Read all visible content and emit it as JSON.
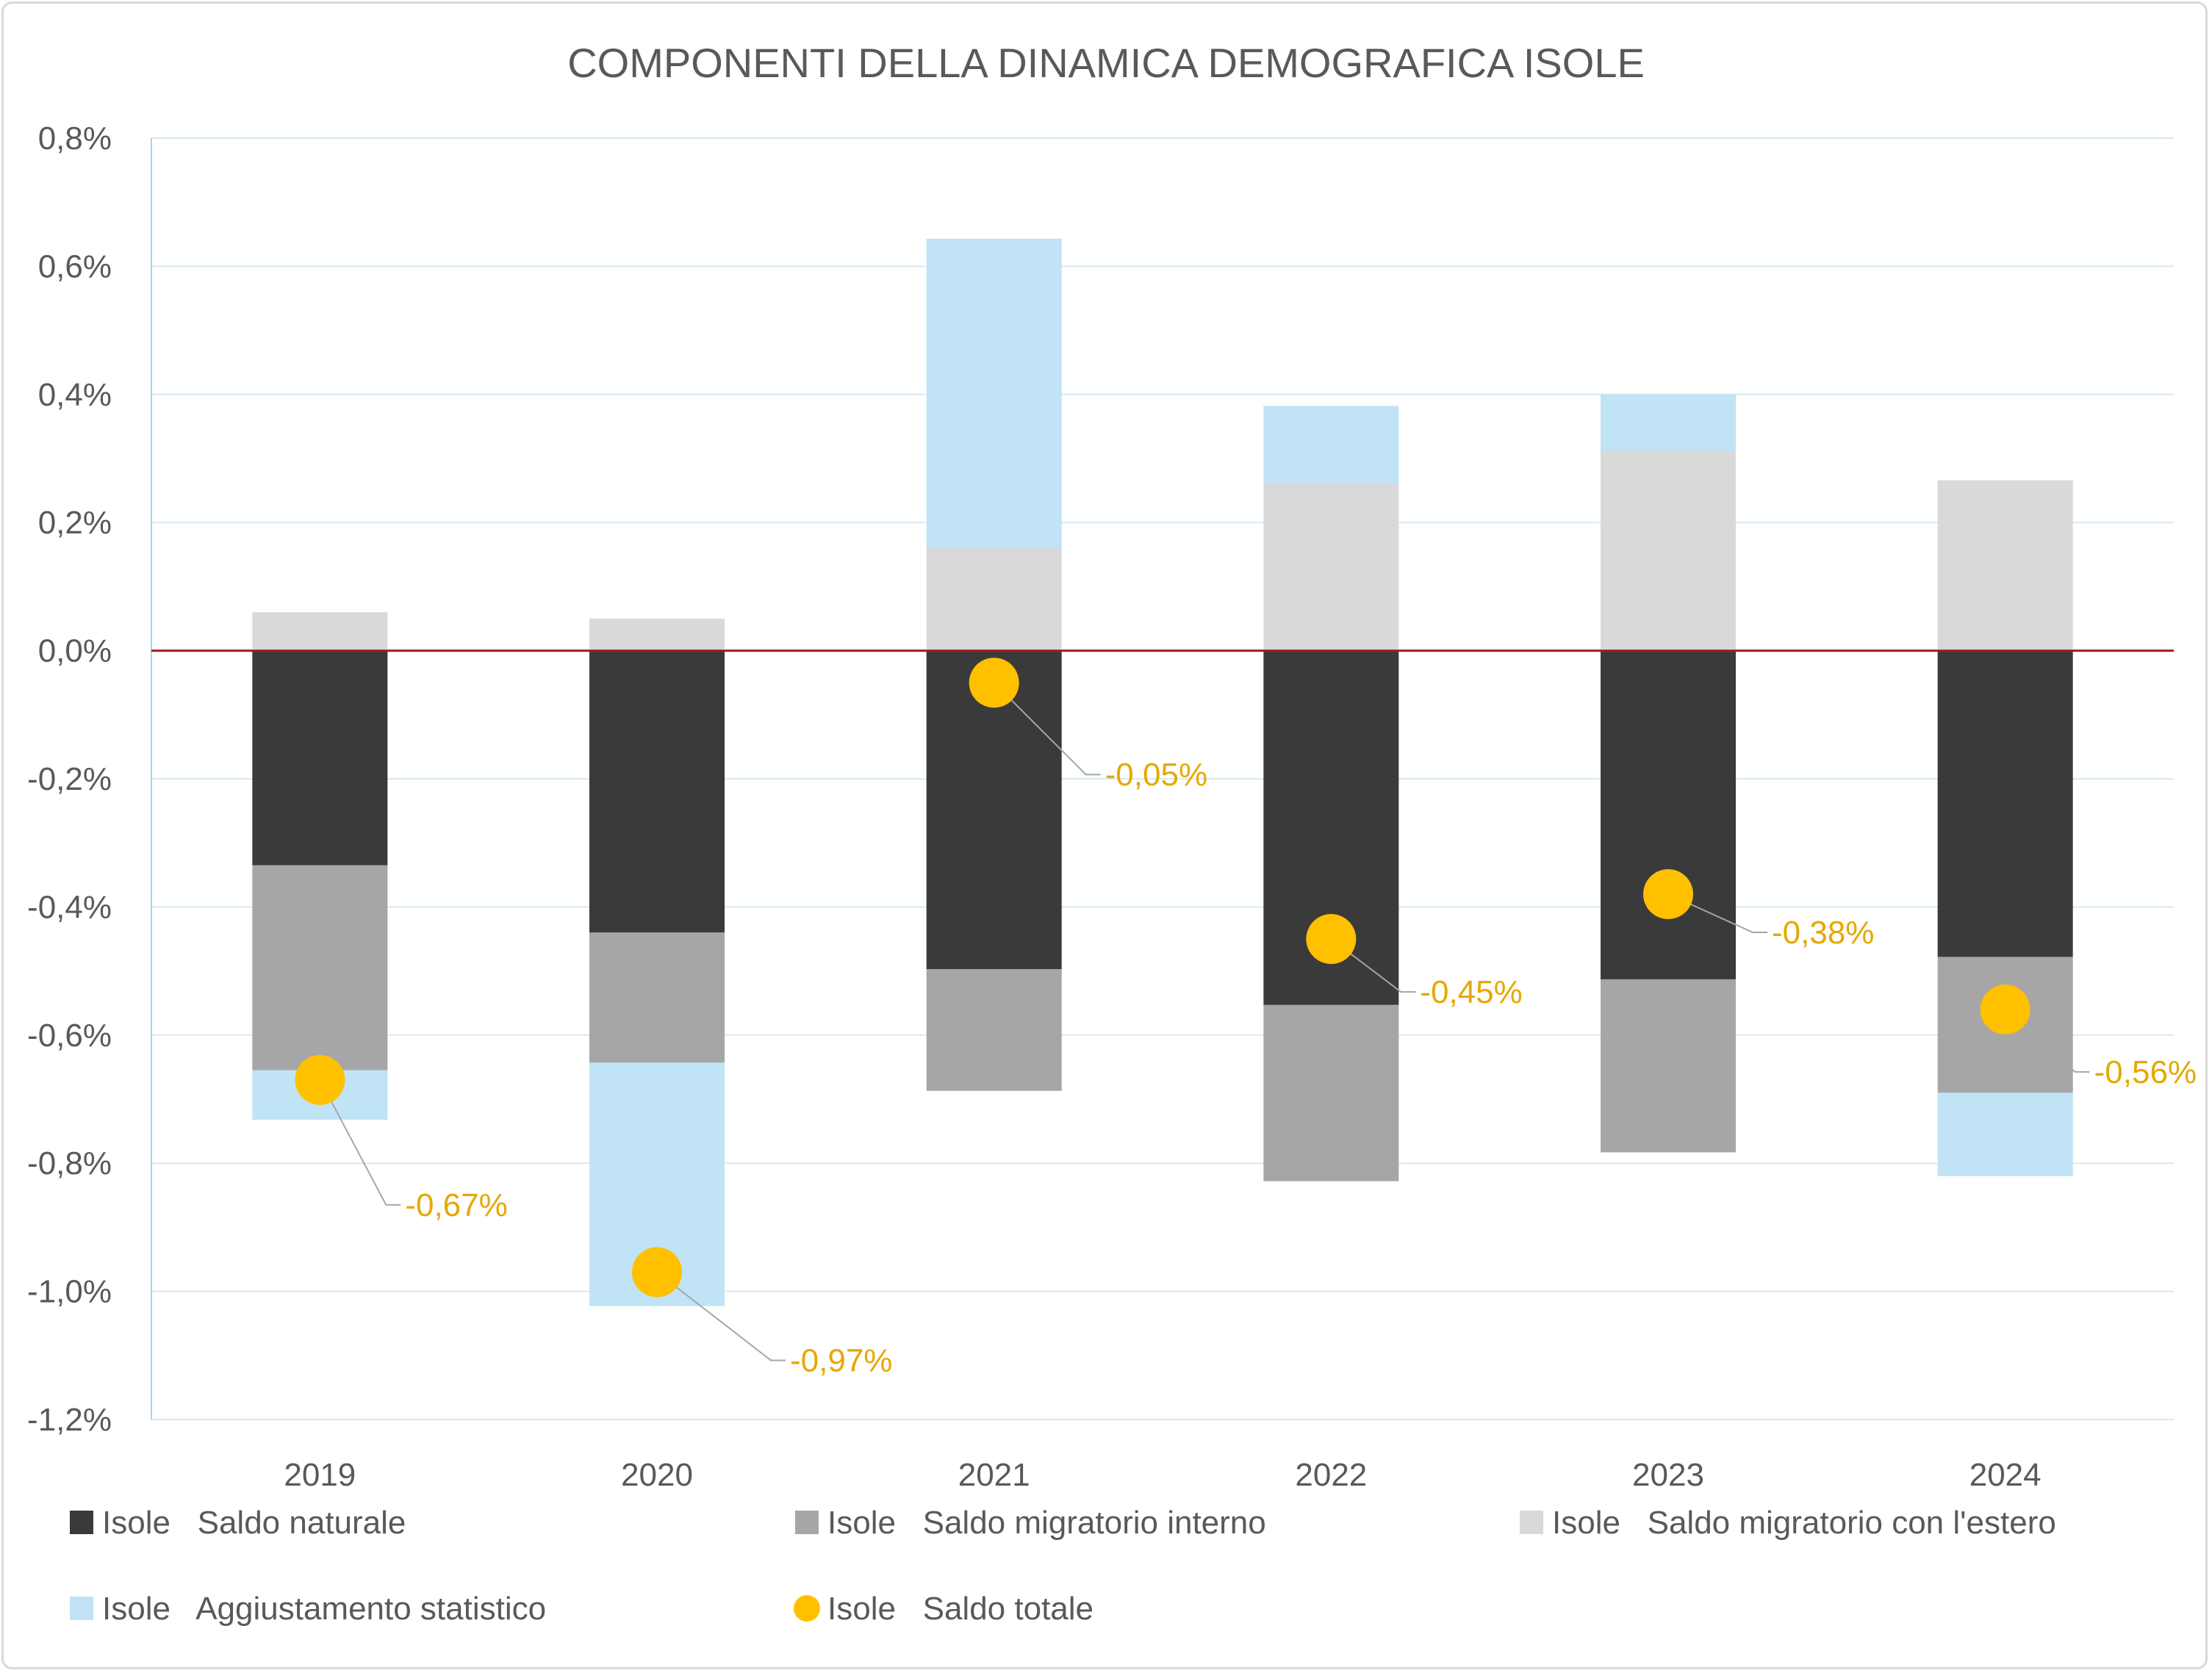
{
  "chart_data": {
    "type": "bar",
    "stacked": true,
    "title": "COMPONENTI DELLA DINAMICA DEMOGRAFICA ISOLE",
    "xlabel": "",
    "ylabel": "",
    "categories": [
      "2019",
      "2020",
      "2021",
      "2022",
      "2023",
      "2024"
    ],
    "ylim": [
      -1.2,
      0.8
    ],
    "yticks": [
      0.8,
      0.6,
      0.4,
      0.2,
      0.0,
      -0.2,
      -0.4,
      -0.6,
      -0.8,
      -1.0,
      -1.2
    ],
    "ytick_labels": [
      "0,8%",
      "0,6%",
      "0,4%",
      "0,2%",
      "0,0%",
      "-0,2%",
      "-0,4%",
      "-0,6%",
      "-0,8%",
      "-1,0%",
      "-1,2%"
    ],
    "grid": true,
    "legend_position": "bottom",
    "series": [
      {
        "name": "Isole   Saldo naturale",
        "color": "#3a3a3a",
        "values": [
          -0.335,
          -0.44,
          -0.497,
          -0.553,
          -0.513,
          -0.478
        ]
      },
      {
        "name": "Isole   Saldo migratorio interno",
        "color": "#a6a6a6",
        "values": [
          -0.32,
          -0.203,
          -0.19,
          -0.275,
          -0.27,
          -0.212
        ]
      },
      {
        "name": "Isole   Saldo migratorio con l'estero",
        "color": "#d9d9d9",
        "values": [
          0.06,
          0.05,
          0.16,
          0.262,
          0.312,
          0.266
        ]
      },
      {
        "name": "Isole   Aggiustamento statistico",
        "color": "#c0e3f5",
        "values": [
          -0.077,
          -0.38,
          0.483,
          0.12,
          0.088,
          -0.13
        ]
      }
    ],
    "total_series": {
      "name": "Isole   Saldo totale",
      "color": "#ffc000",
      "values": [
        -0.67,
        -0.97,
        -0.05,
        -0.45,
        -0.38,
        -0.56
      ],
      "labels": [
        "-0,67%",
        "-0,97%",
        "-0,05%",
        "-0,45%",
        "-0,38%",
        "-0,56%"
      ]
    },
    "zero_line_color": "#a61c1c",
    "label_color": "#e6a800"
  }
}
